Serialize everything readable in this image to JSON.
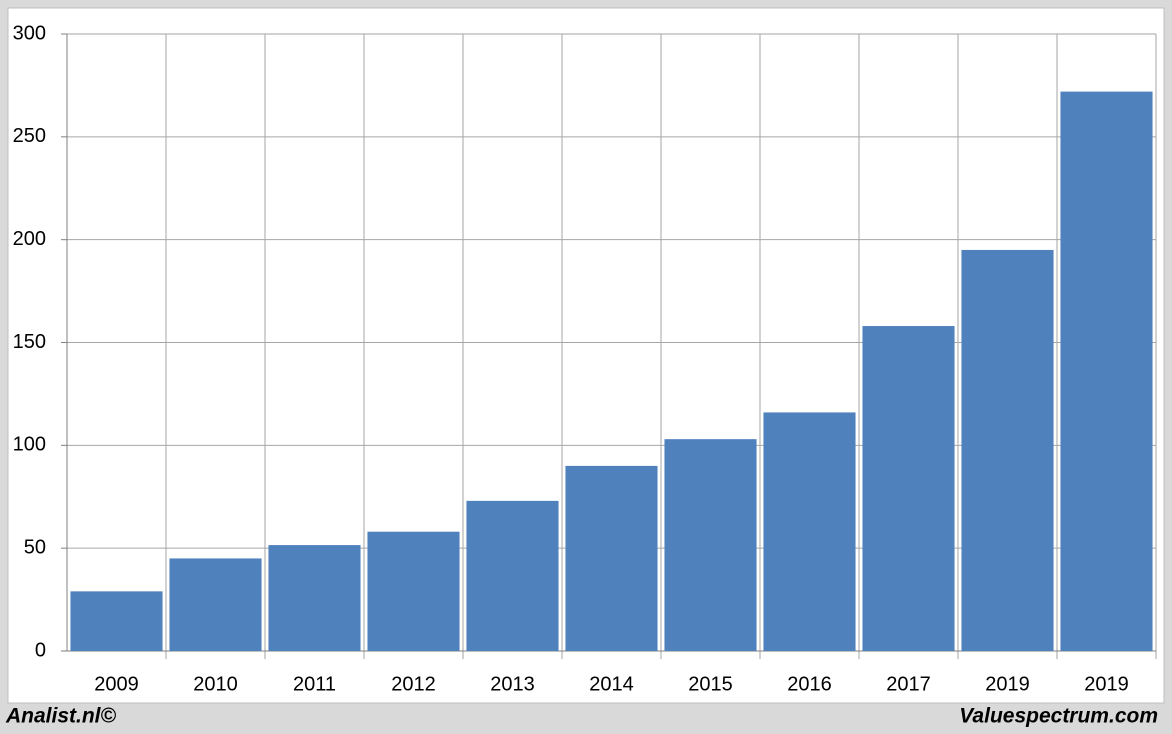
{
  "chart_data": {
    "type": "bar",
    "categories": [
      "2009",
      "2010",
      "2011",
      "2012",
      "2013",
      "2014",
      "2015",
      "2016",
      "2017",
      "2019",
      "2019"
    ],
    "values": [
      29,
      45,
      51.5,
      58,
      73,
      90,
      103,
      116,
      158,
      195,
      272
    ],
    "color": "#4f81bd",
    "ylim": [
      0,
      300
    ],
    "yticks": [
      0,
      50,
      100,
      150,
      200,
      250,
      300
    ],
    "grid": true
  },
  "footer": {
    "left": "Analist.nl©",
    "right": "Valuespectrum.com"
  }
}
